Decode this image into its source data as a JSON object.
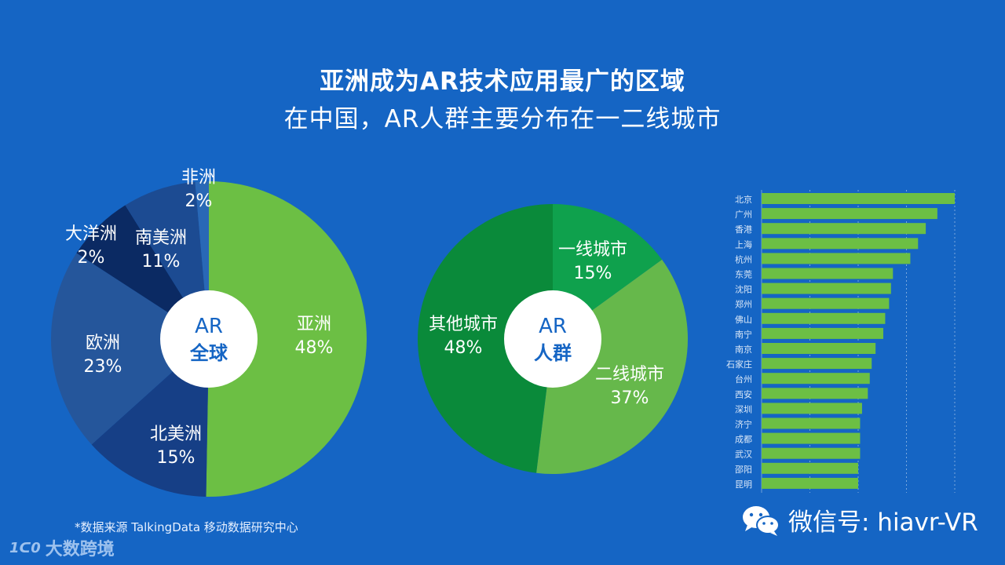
{
  "title": "亚洲成为AR技术应用最广的区域",
  "subtitle": "在中国，AR人群主要分布在一二线城市",
  "source": "*数据来源 TalkingData 移动数据研究中心",
  "brand": "大数跨境",
  "brand_logo": "1ᑕ0",
  "wechat": "微信号: hiavr-VR",
  "chart_data": [
    {
      "type": "pie",
      "center_label": [
        "AR",
        "全球"
      ],
      "slices": [
        {
          "name": "亚洲",
          "value": "48%",
          "color": "#6cbf44"
        },
        {
          "name": "北美洲",
          "value": "15%",
          "color": "#163f86"
        },
        {
          "name": "欧洲",
          "value": "23%",
          "color": "#25569b"
        },
        {
          "name": "大洋洲",
          "value": "2%",
          "color": "#0b2a63"
        },
        {
          "name": "南美洲",
          "value": "11%",
          "color": "#1c4b92"
        },
        {
          "name": "非洲",
          "value": "2%",
          "color": "#2968b6"
        }
      ]
    },
    {
      "type": "pie",
      "center_label": [
        "AR",
        "人群"
      ],
      "slices": [
        {
          "name": "一线城市",
          "value": "15%",
          "color": "#0fa14d"
        },
        {
          "name": "二线城市",
          "value": "37%",
          "color": "#66b84b"
        },
        {
          "name": "其他城市",
          "value": "48%",
          "color": "#0a8a3a"
        }
      ]
    },
    {
      "type": "bar",
      "orientation": "horizontal",
      "color": "#6cbf44",
      "categories": [
        "北京",
        "广州",
        "香港",
        "上海",
        "杭州",
        "东莞",
        "沈阳",
        "郑州",
        "佛山",
        "南宁",
        "南京",
        "石家庄",
        "台州",
        "西安",
        "深圳",
        "济宁",
        "成都",
        "武汉",
        "邵阳",
        "昆明"
      ],
      "values": [
        100,
        91,
        85,
        81,
        77,
        68,
        67,
        66,
        64,
        63,
        59,
        57,
        56,
        55,
        52,
        51,
        51,
        51,
        50,
        50
      ],
      "xlim": [
        0,
        100
      ],
      "grid": true
    }
  ]
}
